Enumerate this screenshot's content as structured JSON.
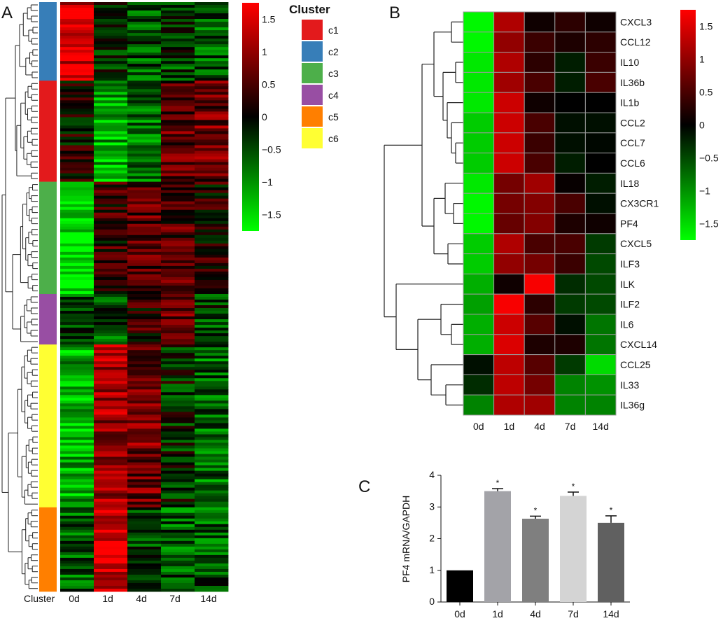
{
  "colors": {
    "low": "#00ff00",
    "mid": "#000000",
    "high": "#ff0000",
    "bar_0d": "#000000",
    "bar_1d": "#a3a3a8",
    "bar_4d": "#7f7f7f",
    "bar_7d": "#d4d4d4",
    "bar_14d": "#606060"
  },
  "panels": {
    "a": "A",
    "b": "B",
    "c": "C"
  },
  "chart_data": [
    {
      "type": "heatmap",
      "panel": "A",
      "x": [
        "0d",
        "1d",
        "4d",
        "7d",
        "14d"
      ],
      "row_annotation_label": "Cluster",
      "colorbar": {
        "min": -1.75,
        "max": 1.75,
        "ticks": [
          1.5,
          1,
          0.5,
          0,
          -0.5,
          -1,
          -1.5
        ],
        "tick_labels": [
          "1.5",
          "1",
          "0.5",
          "0",
          "−0.5",
          "−1",
          "−1.5"
        ]
      },
      "legend": {
        "title": "Cluster",
        "entries": [
          {
            "name": "c1",
            "color": "#e31a1c"
          },
          {
            "name": "c2",
            "color": "#377eb8"
          },
          {
            "name": "c3",
            "color": "#4daf4a"
          },
          {
            "name": "c4",
            "color": "#984ea3"
          },
          {
            "name": "c5",
            "color": "#ff7f00"
          },
          {
            "name": "c6",
            "color": "#ffff33"
          }
        ]
      },
      "cluster_blocks": [
        {
          "cluster": "c2",
          "rows": 28,
          "profile": [
            1.5,
            -0.3,
            -0.5,
            -0.4,
            -0.6
          ]
        },
        {
          "cluster": "c1",
          "rows": 36,
          "profile": [
            0.1,
            -1.2,
            -0.8,
            0.6,
            0.7
          ]
        },
        {
          "cluster": "c3",
          "rows": 40,
          "profile": [
            -1.6,
            0.3,
            0.6,
            0.5,
            0.2
          ]
        },
        {
          "cluster": "c4",
          "rows": 18,
          "profile": [
            -0.5,
            -0.6,
            0.3,
            0.8,
            -0.4
          ]
        },
        {
          "cluster": "c6",
          "rows": 58,
          "profile": [
            -1.2,
            1.1,
            0.8,
            -0.2,
            -0.7
          ]
        },
        {
          "cluster": "c5",
          "rows": 30,
          "profile": [
            -0.6,
            1.5,
            -0.5,
            -0.6,
            -0.6
          ]
        }
      ]
    },
    {
      "type": "heatmap",
      "panel": "B",
      "x": [
        "0d",
        "1d",
        "4d",
        "7d",
        "14d"
      ],
      "rows": [
        "CXCL3",
        "CCL12",
        "IL10",
        "IL36b",
        "IL1b",
        "CCL2",
        "CCL7",
        "CCL6",
        "IL18",
        "CX3CR1",
        "PF4",
        "CXCL5",
        "ILF3",
        "ILK",
        "ILF2",
        "IL6",
        "CXCL14",
        "CCL25",
        "IL33",
        "IL36g"
      ],
      "values": [
        [
          -1.7,
          1.2,
          0.1,
          0.3,
          0.1
        ],
        [
          -1.7,
          1.0,
          0.4,
          0.2,
          0.3
        ],
        [
          -1.6,
          1.2,
          0.3,
          -0.2,
          0.4
        ],
        [
          -1.6,
          1.1,
          0.5,
          -0.2,
          0.5
        ],
        [
          -1.6,
          1.4,
          0.1,
          0.0,
          0.0
        ],
        [
          -1.4,
          1.4,
          0.5,
          -0.1,
          -0.1
        ],
        [
          -1.4,
          1.4,
          0.4,
          -0.1,
          -0.05
        ],
        [
          -1.4,
          1.4,
          0.5,
          -0.2,
          0.0
        ],
        [
          -1.6,
          0.8,
          1.1,
          0.05,
          -0.2
        ],
        [
          -1.7,
          0.8,
          0.9,
          0.5,
          -0.1
        ],
        [
          -1.7,
          0.7,
          0.9,
          0.2,
          0.1
        ],
        [
          -1.4,
          1.2,
          0.5,
          0.5,
          -0.4
        ],
        [
          -1.4,
          1.0,
          0.8,
          0.4,
          -0.5
        ],
        [
          -1.2,
          0.1,
          1.7,
          -0.3,
          -0.5
        ],
        [
          -1.1,
          1.7,
          0.3,
          -0.4,
          -0.5
        ],
        [
          -1.2,
          1.4,
          0.6,
          -0.1,
          -0.8
        ],
        [
          -1.2,
          1.5,
          0.2,
          0.2,
          -0.8
        ],
        [
          -0.1,
          1.3,
          0.6,
          -0.4,
          -1.5
        ],
        [
          -0.3,
          1.3,
          0.8,
          -0.9,
          -1.0
        ],
        [
          -0.9,
          1.2,
          1.1,
          -0.9,
          -0.9
        ]
      ],
      "colorbar": {
        "min": -1.75,
        "max": 1.75,
        "ticks": [
          1.5,
          1,
          0.5,
          0,
          -0.5,
          -1,
          -1.5
        ],
        "tick_labels": [
          "1.5",
          "1",
          "0.5",
          "0",
          "−0.5",
          "−1",
          "−1.5"
        ]
      }
    },
    {
      "type": "bar",
      "panel": "C",
      "categories": [
        "0d",
        "1d",
        "4d",
        "7d",
        "14d"
      ],
      "values": [
        1.0,
        3.5,
        2.63,
        3.35,
        2.5
      ],
      "errors": [
        0,
        0.08,
        0.08,
        0.12,
        0.22
      ],
      "significance": [
        "",
        "*",
        "*",
        "*",
        "*"
      ],
      "ylabel": "PF4 mRNA/GAPDH",
      "ylim": [
        0,
        4
      ],
      "yticks": [
        "0",
        "1",
        "2",
        "3",
        "4"
      ]
    }
  ]
}
